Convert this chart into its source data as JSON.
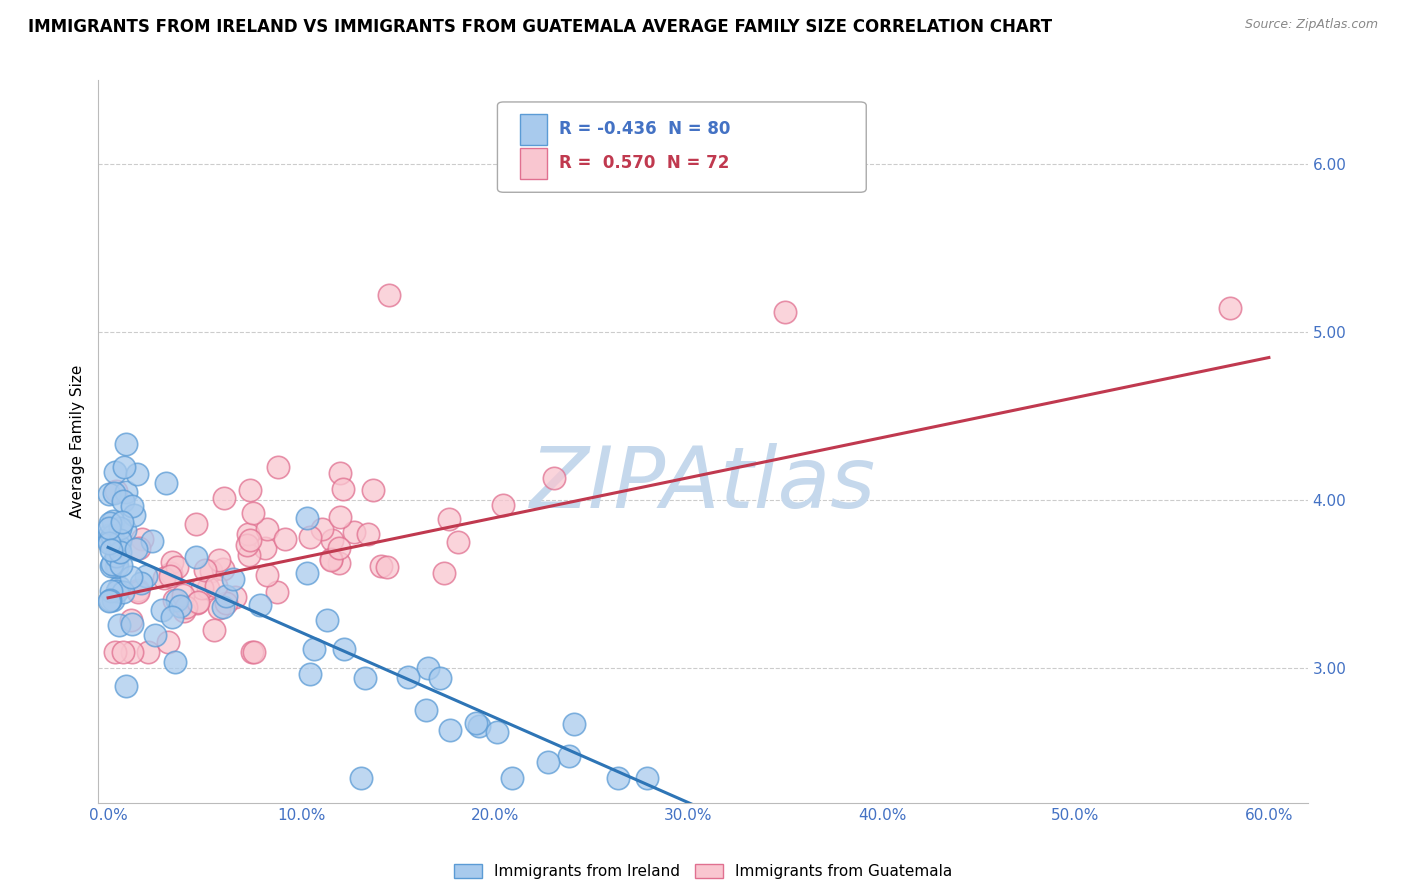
{
  "title": "IMMIGRANTS FROM IRELAND VS IMMIGRANTS FROM GUATEMALA AVERAGE FAMILY SIZE CORRELATION CHART",
  "source": "Source: ZipAtlas.com",
  "ylabel": "Average Family Size",
  "y_ticks_right": [
    3.0,
    4.0,
    5.0,
    6.0
  ],
  "x_ticks_vals": [
    0,
    10,
    20,
    30,
    40,
    50,
    60
  ],
  "x_ticks_labels": [
    "0.0%",
    "10.0%",
    "20.0%",
    "30.0%",
    "40.0%",
    "50.0%",
    "60.0%"
  ],
  "ireland_color": "#a8caed",
  "ireland_edge_color": "#5b9bd5",
  "ireland_line_color": "#2e75b6",
  "ireland_R": -0.436,
  "ireland_N": 80,
  "ireland_label": "Immigrants from Ireland",
  "guatemala_color": "#f9c6d0",
  "guatemala_edge_color": "#e07090",
  "guatemala_line_color": "#c0394f",
  "guatemala_R": 0.57,
  "guatemala_N": 72,
  "guatemala_label": "Immigrants from Guatemala",
  "watermark": "ZIPAtlas",
  "watermark_color": "#c5d8ec",
  "background_color": "#ffffff",
  "title_fontsize": 12,
  "tick_fontsize": 11,
  "tick_color": "#4472c4",
  "xlim": [
    -0.5,
    62
  ],
  "ylim": [
    2.2,
    6.5
  ],
  "ireland_trend_x": [
    0.0,
    31.0
  ],
  "ireland_trend_y": [
    3.72,
    2.15
  ],
  "guatemala_trend_x": [
    0.0,
    60.0
  ],
  "guatemala_trend_y": [
    3.42,
    4.85
  ]
}
